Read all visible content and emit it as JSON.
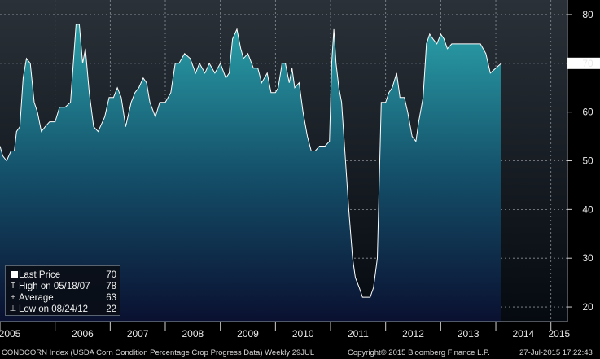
{
  "chart_data": {
    "type": "area",
    "title": "",
    "xlabel": "",
    "ylabel": "",
    "ylim": [
      17,
      83
    ],
    "yticks": [
      20,
      30,
      40,
      50,
      60,
      70,
      80
    ],
    "x_tick_labels": [
      "2005",
      "2006",
      "2007",
      "2008",
      "2009",
      "2010",
      "2011",
      "2012",
      "2013",
      "2014",
      "2015"
    ],
    "grid": true,
    "colors": {
      "fill_top": "#2aa0a8",
      "fill_bottom": "#0a1030",
      "line": "#ffffff",
      "background_top": "#2a3138",
      "background_bottom": "#050a10"
    },
    "series": [
      {
        "values": [
          [
            2005.0,
            53
          ],
          [
            2005.05,
            51
          ],
          [
            2005.12,
            50
          ],
          [
            2005.2,
            52
          ],
          [
            2005.26,
            52
          ],
          [
            2005.3,
            56
          ],
          [
            2005.36,
            57
          ],
          [
            2005.42,
            67
          ],
          [
            2005.48,
            71
          ],
          [
            2005.55,
            70
          ],
          [
            2005.62,
            62
          ],
          [
            2005.68,
            60
          ],
          [
            2005.75,
            56
          ],
          [
            2005.82,
            57
          ],
          [
            2005.9,
            58
          ],
          [
            2006.0,
            58
          ],
          [
            2006.08,
            61
          ],
          [
            2006.18,
            61
          ],
          [
            2006.28,
            62
          ],
          [
            2006.33,
            70
          ],
          [
            2006.38,
            78
          ],
          [
            2006.44,
            78
          ],
          [
            2006.5,
            70
          ],
          [
            2006.55,
            73
          ],
          [
            2006.62,
            64
          ],
          [
            2006.7,
            57
          ],
          [
            2006.78,
            56
          ],
          [
            2006.9,
            59
          ],
          [
            2006.98,
            63
          ],
          [
            2007.06,
            63
          ],
          [
            2007.13,
            65
          ],
          [
            2007.2,
            63
          ],
          [
            2007.28,
            57
          ],
          [
            2007.38,
            62
          ],
          [
            2007.45,
            64
          ],
          [
            2007.52,
            65
          ],
          [
            2007.6,
            67
          ],
          [
            2007.66,
            66
          ],
          [
            2007.72,
            62
          ],
          [
            2007.82,
            59
          ],
          [
            2007.9,
            62
          ],
          [
            2008.0,
            62
          ],
          [
            2008.1,
            64
          ],
          [
            2008.18,
            70
          ],
          [
            2008.25,
            70
          ],
          [
            2008.35,
            72
          ],
          [
            2008.45,
            71
          ],
          [
            2008.55,
            68
          ],
          [
            2008.62,
            70
          ],
          [
            2008.72,
            68
          ],
          [
            2008.8,
            70
          ],
          [
            2008.9,
            68
          ],
          [
            2009.0,
            70
          ],
          [
            2009.1,
            67
          ],
          [
            2009.16,
            68
          ],
          [
            2009.22,
            75
          ],
          [
            2009.3,
            77
          ],
          [
            2009.37,
            73
          ],
          [
            2009.42,
            71
          ],
          [
            2009.5,
            72
          ],
          [
            2009.6,
            69
          ],
          [
            2009.68,
            69
          ],
          [
            2009.75,
            66
          ],
          [
            2009.85,
            68
          ],
          [
            2009.92,
            64
          ],
          [
            2010.0,
            64
          ],
          [
            2010.05,
            65
          ],
          [
            2010.12,
            70
          ],
          [
            2010.18,
            70
          ],
          [
            2010.25,
            66
          ],
          [
            2010.3,
            69
          ],
          [
            2010.35,
            65
          ],
          [
            2010.43,
            66
          ],
          [
            2010.5,
            60
          ],
          [
            2010.58,
            55
          ],
          [
            2010.65,
            52
          ],
          [
            2010.72,
            52
          ],
          [
            2010.8,
            53
          ],
          [
            2010.9,
            53
          ],
          [
            2010.98,
            54
          ],
          [
            2011.02,
            70
          ],
          [
            2011.06,
            77
          ],
          [
            2011.1,
            70
          ],
          [
            2011.15,
            65
          ],
          [
            2011.2,
            62
          ],
          [
            2011.26,
            52
          ],
          [
            2011.33,
            40
          ],
          [
            2011.4,
            30
          ],
          [
            2011.45,
            26
          ],
          [
            2011.52,
            24
          ],
          [
            2011.58,
            22
          ],
          [
            2011.64,
            22
          ],
          [
            2011.72,
            22
          ],
          [
            2011.78,
            24
          ],
          [
            2011.85,
            30
          ],
          [
            2011.92,
            62
          ],
          [
            2012.0,
            62
          ],
          [
            2012.06,
            64
          ],
          [
            2012.12,
            65
          ],
          [
            2012.2,
            68
          ],
          [
            2012.26,
            63
          ],
          [
            2012.34,
            63
          ],
          [
            2012.4,
            60
          ],
          [
            2012.48,
            55
          ],
          [
            2012.55,
            54
          ],
          [
            2012.6,
            58
          ],
          [
            2012.68,
            63
          ],
          [
            2012.74,
            74
          ],
          [
            2012.8,
            76
          ],
          [
            2012.86,
            75
          ],
          [
            2012.93,
            74
          ],
          [
            2013.0,
            76
          ],
          [
            2013.06,
            75
          ],
          [
            2013.12,
            73
          ],
          [
            2013.2,
            74
          ],
          [
            2013.3,
            74
          ],
          [
            2013.4,
            74
          ],
          [
            2013.5,
            74
          ],
          [
            2013.6,
            74
          ],
          [
            2013.72,
            74
          ],
          [
            2013.82,
            72
          ],
          [
            2013.9,
            68
          ],
          [
            2014.0,
            69
          ],
          [
            2014.1,
            70
          ]
        ]
      }
    ],
    "last_value_label": "70",
    "legend": [
      {
        "symbol": "box",
        "label": "Last Price",
        "value": "70"
      },
      {
        "symbol": "T",
        "label": "High on 05/18/07",
        "value": "78"
      },
      {
        "symbol": "+",
        "label": "Average",
        "value": "63"
      },
      {
        "symbol": "⊥",
        "label": "Low on 08/24/12",
        "value": "22"
      }
    ]
  },
  "footer": {
    "ticker": "CONDCORN Index (USDA Corn Condition Percentage Crop Progress Data)  Weekly 29JUL",
    "copyright": "Copyright© 2015 Bloomberg Finance L.P.",
    "timestamp": "27-Jul-2015 17:22:43"
  }
}
